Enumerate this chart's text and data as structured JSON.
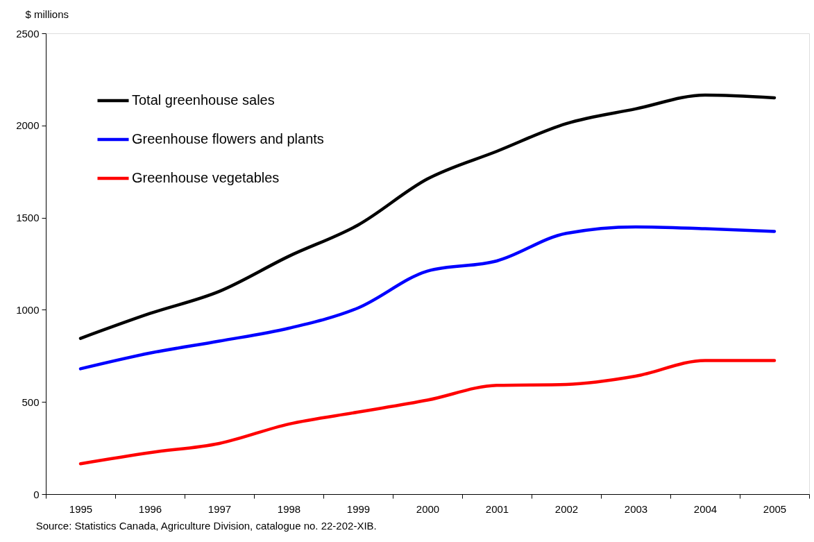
{
  "chart_data": {
    "type": "line",
    "ylabel": "$ millions",
    "annotations": [
      "Source: Statistics Canada, Agriculture Division, catalogue no. 22-202-XIB."
    ],
    "categories": [
      "1995",
      "1996",
      "1997",
      "1998",
      "1999",
      "2000",
      "2001",
      "2002",
      "2003",
      "2004",
      "2005"
    ],
    "series": [
      {
        "name": "Total greenhouse sales",
        "color": "#000000",
        "values": [
          845,
          980,
          1100,
          1290,
          1460,
          1710,
          1860,
          2010,
          2090,
          2165,
          2150
        ]
      },
      {
        "name": "Greenhouse flowers and plants",
        "color": "#0000ff",
        "values": [
          680,
          765,
          830,
          900,
          1010,
          1210,
          1265,
          1415,
          1450,
          1440,
          1425
        ]
      },
      {
        "name": "Greenhouse vegetables",
        "color": "#ff0000",
        "values": [
          165,
          225,
          275,
          380,
          445,
          510,
          590,
          595,
          640,
          725,
          725
        ]
      }
    ],
    "ylim": [
      0,
      2500
    ],
    "yticks": [
      0,
      500,
      1000,
      1500,
      2000,
      2500
    ],
    "grid": false,
    "legend": "top left",
    "marker": "none",
    "line_style": "solid"
  }
}
